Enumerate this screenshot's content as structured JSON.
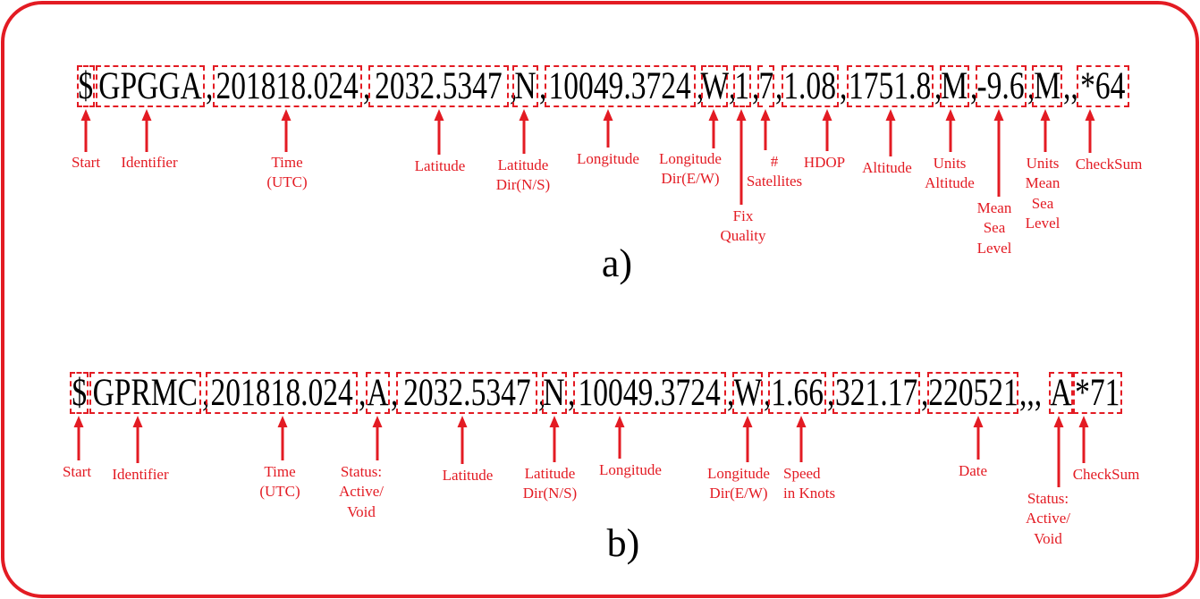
{
  "colors": {
    "accent": "#e31b23",
    "text": "#000000",
    "background": "#ffffff"
  },
  "panel_a": {
    "caption": "a)",
    "fields": [
      {
        "value": "$",
        "label": "Start"
      },
      {
        "value": "GPGGA",
        "after": ",",
        "label": "Identifier"
      },
      {
        "value": "201818.024",
        "after": ",",
        "label": "Time\n(UTC)"
      },
      {
        "value": "2032.5347",
        "after": ",",
        "label": "Latitude"
      },
      {
        "value": "N",
        "after": ",",
        "label": "Latitude\nDir(N/S)"
      },
      {
        "value": "10049.3724",
        "after": ",",
        "label": "Longitude"
      },
      {
        "value": "W",
        "after": ",",
        "label": "Longitude\nDir(E/W)"
      },
      {
        "value": "1",
        "after": ",",
        "label": "Fix\nQuality"
      },
      {
        "value": "7",
        "after": ",",
        "label": "#\nSatellites"
      },
      {
        "value": "1.08",
        "after": ",",
        "label": "HDOP"
      },
      {
        "value": "1751.8",
        "after": ",",
        "label": "Altitude"
      },
      {
        "value": "M",
        "after": ",",
        "label": "Units\nAltitude"
      },
      {
        "value": "-9.6",
        "after": ",",
        "label": "Mean\nSea\nLevel"
      },
      {
        "value": "M",
        "after": ",,",
        "label": "Units\nMean\nSea\nLevel"
      },
      {
        "value": "*64",
        "label": "CheckSum"
      }
    ]
  },
  "panel_b": {
    "caption": "b)",
    "fields": [
      {
        "value": "$",
        "label": "Start"
      },
      {
        "value": "GPRMC",
        "after": ",",
        "label": "Identifier"
      },
      {
        "value": "201818.024",
        "after": ",",
        "label": "Time\n(UTC)"
      },
      {
        "value": "A",
        "after": ",",
        "label": "Status:\nActive/\nVoid"
      },
      {
        "value": "2032.5347",
        "after": ",",
        "label": "Latitude"
      },
      {
        "value": "N",
        "after": ",",
        "label": "Latitude\nDir(N/S)"
      },
      {
        "value": "10049.3724",
        "after": ",",
        "label": "Longitude"
      },
      {
        "value": "W",
        "after": ",",
        "label": "Longitude\nDir(E/W)"
      },
      {
        "value": "1.66",
        "after": ",",
        "label": "Speed\nin Knots"
      },
      {
        "value": "321.17",
        "after": ","
      },
      {
        "value": "220521",
        "after": ",,,",
        "label": "Date"
      },
      {
        "value": "A",
        "label": "Status:\nActive/\nVoid"
      },
      {
        "value": "*71",
        "label": "CheckSum"
      }
    ]
  }
}
